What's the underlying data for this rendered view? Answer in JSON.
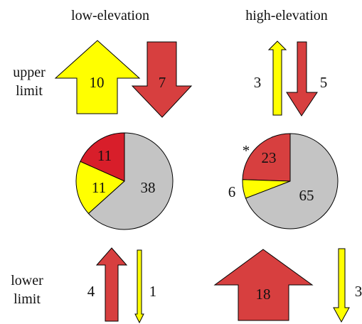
{
  "colors": {
    "yellow": "#ffff00",
    "red": "#d73f3f",
    "pie_red": "#d81e2a",
    "gray": "#c4c4c4"
  },
  "columns": {
    "low": "low-elevation",
    "high": "high-elevation"
  },
  "rows": {
    "upper": [
      "upper",
      "limit"
    ],
    "lower": [
      "lower",
      "limit"
    ]
  },
  "upper_limit": {
    "low": {
      "up": "10",
      "down": "7"
    },
    "high": {
      "up": "3",
      "down": "5"
    }
  },
  "lower_limit": {
    "low": {
      "up": "4",
      "down": "1"
    },
    "high": {
      "up": "18",
      "down": "3"
    }
  },
  "pies": {
    "low": {
      "slices": [
        {
          "value": 11,
          "label": "11",
          "color": "pie_red"
        },
        {
          "value": 11,
          "label": "11",
          "color": "yellow"
        },
        {
          "value": 38,
          "label": "38",
          "color": "gray"
        }
      ]
    },
    "high": {
      "marker": "*",
      "slices": [
        {
          "value": 23,
          "label": "23",
          "color": "red"
        },
        {
          "value": 6,
          "label": "6",
          "color": "yellow"
        },
        {
          "value": 65,
          "label": "65",
          "color": "gray"
        }
      ]
    }
  }
}
